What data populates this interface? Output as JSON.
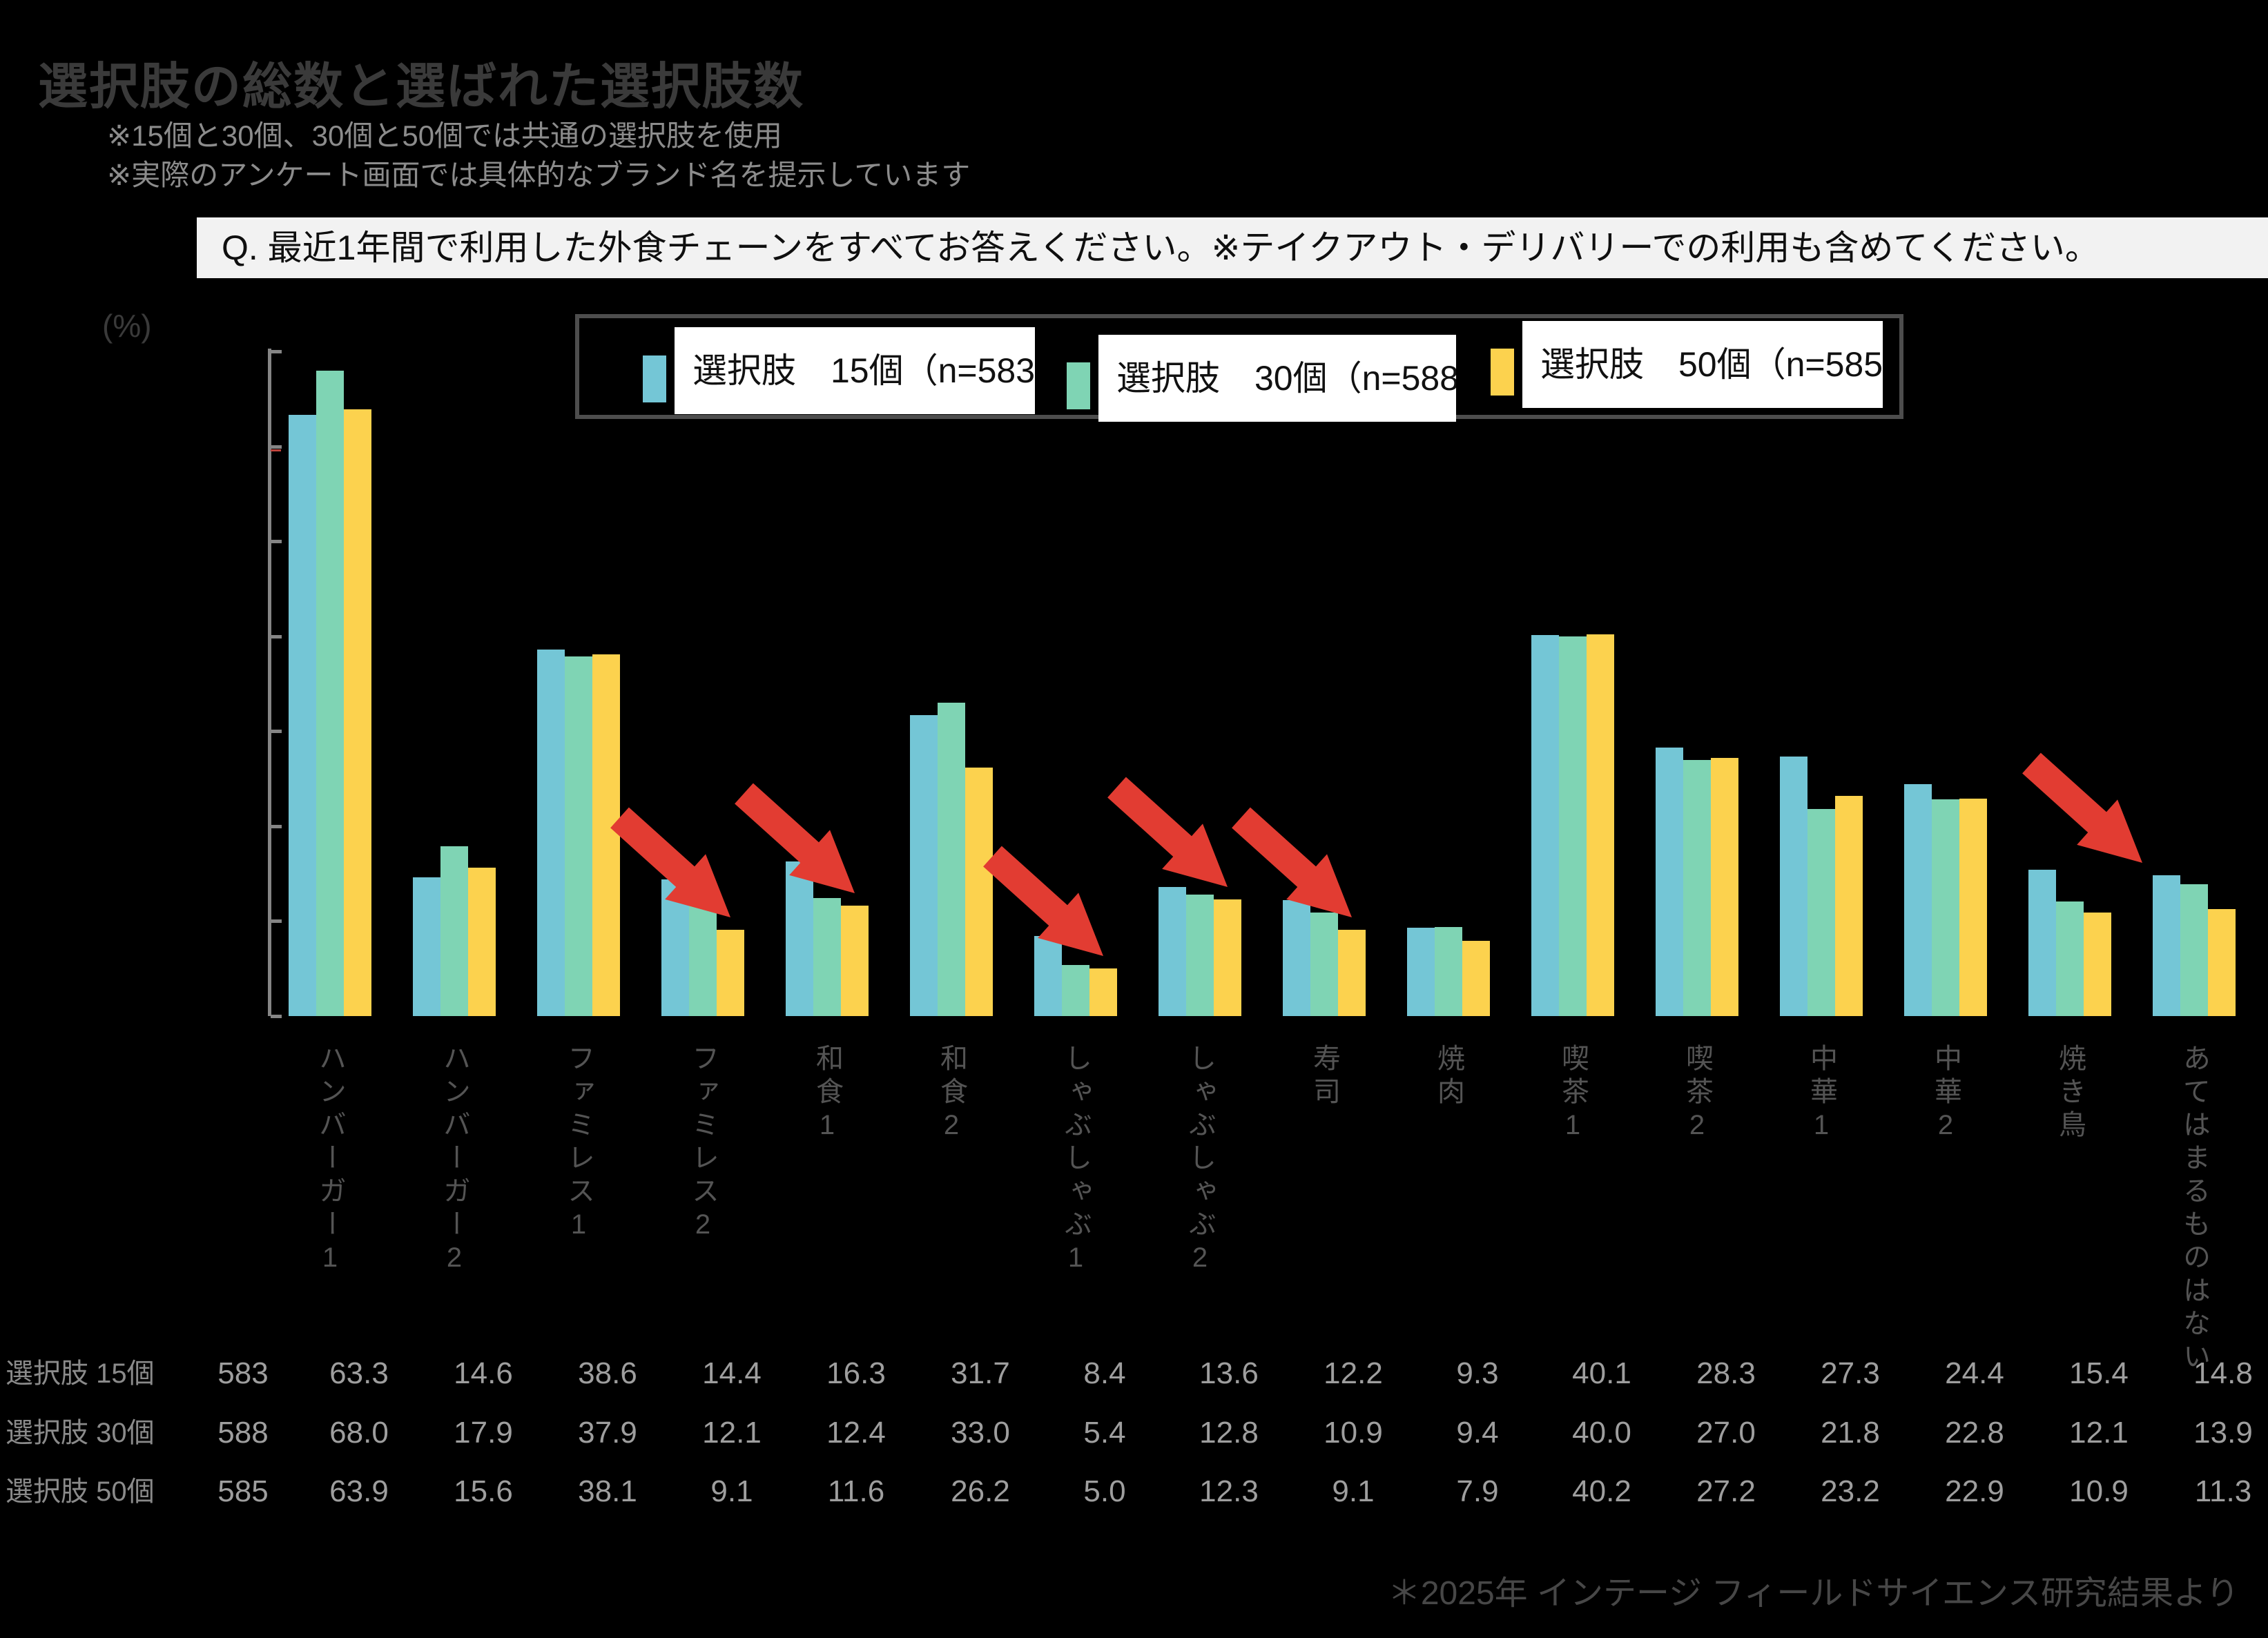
{
  "title": "選択肢の総数と選ばれた選択肢数",
  "notes": [
    "※15個と30個、30個と50個では共通の選択肢を使用",
    "※実際のアンケート画面では具体的なブランド名を提示しています"
  ],
  "question": "Q. 最近1年間で利用した外食チェーンをすべてお答えください。※テイクアウト・デリバリーでの利用も含めてください。",
  "unit_label": "(%)",
  "footer": "＊2025年 インテージ フィールドサイエンス研究結果より",
  "legend": [
    {
      "label": "選択肢　15個（n=583",
      "color": "#74c6d6"
    },
    {
      "label": "選択肢　30個（n=588",
      "color": "#7fd4b4"
    },
    {
      "label": "選択肢　50個（n=585",
      "color": "#fcd24e"
    }
  ],
  "table": {
    "row_labels": [
      "選択肢 15個",
      "選択肢 30個",
      "選択肢 50個"
    ]
  },
  "chart_data": {
    "type": "bar",
    "title": "選択肢の総数と選ばれた選択肢数",
    "xlabel": "",
    "ylabel": "(%)",
    "ylim": [
      0,
      70
    ],
    "ytick_step": 10,
    "ytick_labels_visible": false,
    "grid": false,
    "legend_position": "top",
    "categories": [
      "ハンバーガー1",
      "ハンバーガー2",
      "ファミレス1",
      "ファミレス2",
      "和食1",
      "和食2",
      "しゃぶしゃぶ1",
      "しゃぶしゃぶ2",
      "寿司",
      "焼肉",
      "喫茶1",
      "喫茶2",
      "中華1",
      "中華2",
      "焼き鳥",
      "あてはまるものはない"
    ],
    "series": [
      {
        "name": "選択肢 15個",
        "n": 583,
        "color": "#74c6d6",
        "values": [
          63.3,
          14.6,
          38.6,
          14.4,
          16.3,
          31.7,
          8.4,
          13.6,
          12.2,
          9.3,
          40.1,
          28.3,
          27.3,
          24.4,
          15.4,
          14.8
        ]
      },
      {
        "name": "選択肢 30個",
        "n": 588,
        "color": "#7fd4b4",
        "values": [
          68.0,
          17.9,
          37.9,
          12.1,
          12.4,
          33.0,
          5.4,
          12.8,
          10.9,
          9.4,
          40.0,
          27.0,
          21.8,
          22.8,
          12.1,
          13.9
        ]
      },
      {
        "name": "選択肢 50個",
        "n": 585,
        "color": "#fcd24e",
        "values": [
          63.9,
          15.6,
          38.1,
          9.1,
          11.6,
          26.2,
          5.0,
          12.3,
          9.1,
          7.9,
          40.2,
          27.2,
          23.2,
          22.9,
          10.9,
          11.3
        ]
      }
    ],
    "annotations": {
      "arrow_color": "#e23c32",
      "red_tick_value": 60,
      "arrows": [
        {
          "category_index": 3,
          "anchor": "yellow-top"
        },
        {
          "category_index": 4,
          "anchor": "yellow-top"
        },
        {
          "category_index": 6,
          "anchor": "yellow-top"
        },
        {
          "category_index": 7,
          "anchor": "yellow-top"
        },
        {
          "category_index": 8,
          "anchor": "yellow-top"
        },
        {
          "category_index": 15,
          "anchor": "left-of-group"
        }
      ]
    }
  }
}
